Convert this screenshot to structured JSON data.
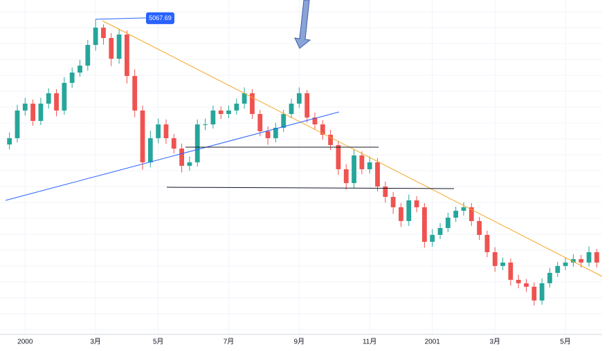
{
  "chart_data": {
    "type": "candlestick",
    "high_label": 5067.69,
    "categories": [
      null,
      null,
      "2000",
      null,
      null,
      null,
      null,
      null,
      null,
      null,
      null,
      "3月",
      null,
      null,
      null,
      null,
      null,
      null,
      null,
      "5月",
      null,
      null,
      null,
      null,
      null,
      null,
      null,
      null,
      "7月",
      null,
      null,
      null,
      null,
      null,
      null,
      null,
      null,
      "9月",
      null,
      null,
      null,
      null,
      null,
      null,
      null,
      null,
      "11月",
      null,
      null,
      null,
      null,
      null,
      null,
      null,
      "2001",
      null,
      null,
      null,
      null,
      null,
      null,
      null,
      "3月",
      null,
      null,
      null,
      null,
      null,
      null,
      null,
      null,
      "5月",
      null,
      null,
      null,
      null
    ],
    "open": [
      3560,
      3636,
      3969,
      4052,
      3844,
      4052,
      4177,
      3969,
      4302,
      4426,
      4510,
      4759,
      4967,
      4842,
      4593,
      4884,
      4385,
      3969,
      3345,
      3636,
      3802,
      3636,
      3511,
      3303,
      3345,
      3802,
      3802,
      3969,
      3927,
      3969,
      4052,
      4177,
      3927,
      3719,
      3636,
      3761,
      3927,
      4052,
      4177,
      3885,
      3802,
      3677,
      3553,
      3262,
      3095,
      3428,
      3262,
      3345,
      3054,
      2929,
      2804,
      2638,
      2887,
      2804,
      2388,
      2471,
      2554,
      2679,
      2762,
      2804,
      2638,
      2471,
      2263,
      2097,
      2138,
      1930,
      1889,
      1847,
      1681,
      1889,
      2014,
      2097,
      2138,
      2180,
      2138,
      2263
    ],
    "high": [
      3706,
      4039,
      4122,
      4102,
      4122,
      4237,
      4227,
      4372,
      4486,
      4580,
      4819,
      5067.69,
      5007,
      4902,
      4954,
      4934,
      4465,
      4029,
      3726,
      3872,
      3862,
      3686,
      3571,
      3415,
      3862,
      3872,
      4029,
      4019,
      4029,
      4112,
      4247,
      4227,
      3977,
      3779,
      3821,
      3977,
      4112,
      4247,
      4217,
      3945,
      3852,
      3737,
      3603,
      3322,
      3498,
      3478,
      3415,
      3395,
      3114,
      2989,
      2854,
      2957,
      2937,
      2854,
      2541,
      2614,
      2739,
      2812,
      2864,
      2854,
      2688,
      2521,
      2323,
      2198,
      2188,
      1990,
      1939,
      1897,
      1949,
      2074,
      2147,
      2198,
      2240,
      2230,
      2333,
      2303
    ],
    "low": [
      3500,
      3586,
      3909,
      3784,
      3794,
      3992,
      3899,
      3919,
      4242,
      4376,
      4450,
      4689,
      4762,
      4503,
      4533,
      4295,
      3889,
      3255,
      3285,
      3576,
      3566,
      3451,
      3223,
      3243,
      3295,
      3732,
      3752,
      3867,
      3877,
      3919,
      3992,
      3867,
      3659,
      3556,
      3586,
      3711,
      3877,
      4002,
      3825,
      3742,
      3617,
      3493,
      3192,
      3015,
      3035,
      3202,
      3212,
      2994,
      2859,
      2724,
      2568,
      2578,
      2744,
      2318,
      2328,
      2421,
      2504,
      2629,
      2702,
      2578,
      2411,
      2203,
      2027,
      2047,
      1860,
      1829,
      1787,
      1621,
      1631,
      1839,
      1964,
      2047,
      2088,
      2078,
      2088,
      2078
    ],
    "close": [
      3636,
      3969,
      4052,
      3844,
      4052,
      4177,
      3969,
      4302,
      4426,
      4510,
      4759,
      4967,
      4842,
      4593,
      4884,
      4385,
      3969,
      3345,
      3636,
      3802,
      3636,
      3511,
      3303,
      3345,
      3802,
      3802,
      3969,
      3927,
      3969,
      4052,
      4177,
      3927,
      3719,
      3636,
      3761,
      3927,
      4052,
      4177,
      3885,
      3802,
      3677,
      3553,
      3262,
      3095,
      3428,
      3262,
      3345,
      3054,
      2929,
      2804,
      2638,
      2887,
      2804,
      2388,
      2471,
      2554,
      2679,
      2762,
      2804,
      2638,
      2471,
      2263,
      2097,
      2138,
      1930,
      1889,
      1847,
      1681,
      1889,
      2014,
      2097,
      2138,
      2180,
      2138,
      2263,
      2138
    ],
    "up_color": "#26a69a",
    "down_color": "#ef5350",
    "ylim": [
      1306,
      5300
    ]
  }
}
